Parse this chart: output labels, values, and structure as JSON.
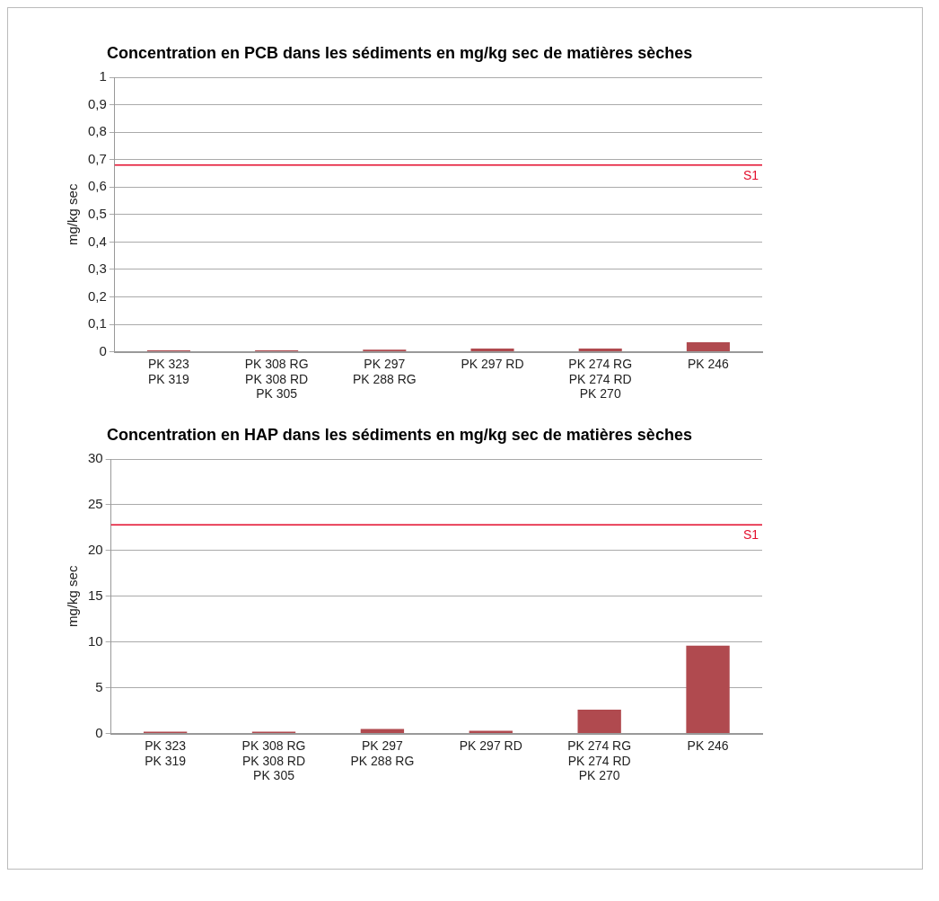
{
  "chart_data": [
    {
      "type": "bar",
      "title": "Concentration en PCB dans les sédiments en mg/kg sec de matières sèches",
      "ylabel": "mg/kg sec",
      "categories": [
        "PK 323\nPK 319",
        "PK 308 RG\nPK 308 RD\nPK 305",
        "PK 297\nPK 288 RG",
        "PK 297 RD",
        "PK 274 RG\nPK 274 RD\nPK 270",
        "PK 246"
      ],
      "values": [
        0.005,
        0.005,
        0.008,
        0.012,
        0.012,
        0.035
      ],
      "color": "#b04a4f",
      "ylim": [
        0,
        1
      ],
      "yticks": [
        {
          "value": 0,
          "label": "0"
        },
        {
          "value": 0.1,
          "label": "0,1"
        },
        {
          "value": 0.2,
          "label": "0,2"
        },
        {
          "value": 0.3,
          "label": "0,3"
        },
        {
          "value": 0.4,
          "label": "0,4"
        },
        {
          "value": 0.5,
          "label": "0,5"
        },
        {
          "value": 0.6,
          "label": "0,6"
        },
        {
          "value": 0.7,
          "label": "0,7"
        },
        {
          "value": 0.8,
          "label": "0,8"
        },
        {
          "value": 0.9,
          "label": "0,9"
        },
        1
      ],
      "ref_lines": [
        {
          "axis": "y",
          "value": 0.68,
          "label": "S1",
          "color": "#e30d2c"
        }
      ],
      "grid": "y",
      "legend": false
    },
    {
      "type": "bar",
      "title": "Concentration en HAP dans les sédiments en mg/kg sec de matières sèches",
      "ylabel": "mg/kg sec",
      "categories": [
        "PK 323\nPK 319",
        "PK 308 RG\nPK 308 RD\nPK 305",
        "PK 297\nPK 288 RG",
        "PK 297 RD",
        "PK 274 RG\nPK 274 RD\nPK 270",
        "PK 246"
      ],
      "values": [
        0.2,
        0.2,
        0.5,
        0.3,
        2.6,
        9.6
      ],
      "color": "#b04a4f",
      "ylim": [
        0,
        30
      ],
      "yticks": [
        0,
        5,
        10,
        15,
        20,
        25,
        30
      ],
      "ref_lines": [
        {
          "axis": "y",
          "value": 22.8,
          "label": "S1",
          "color": "#e30d2c"
        }
      ],
      "grid": "y",
      "legend": false
    }
  ]
}
